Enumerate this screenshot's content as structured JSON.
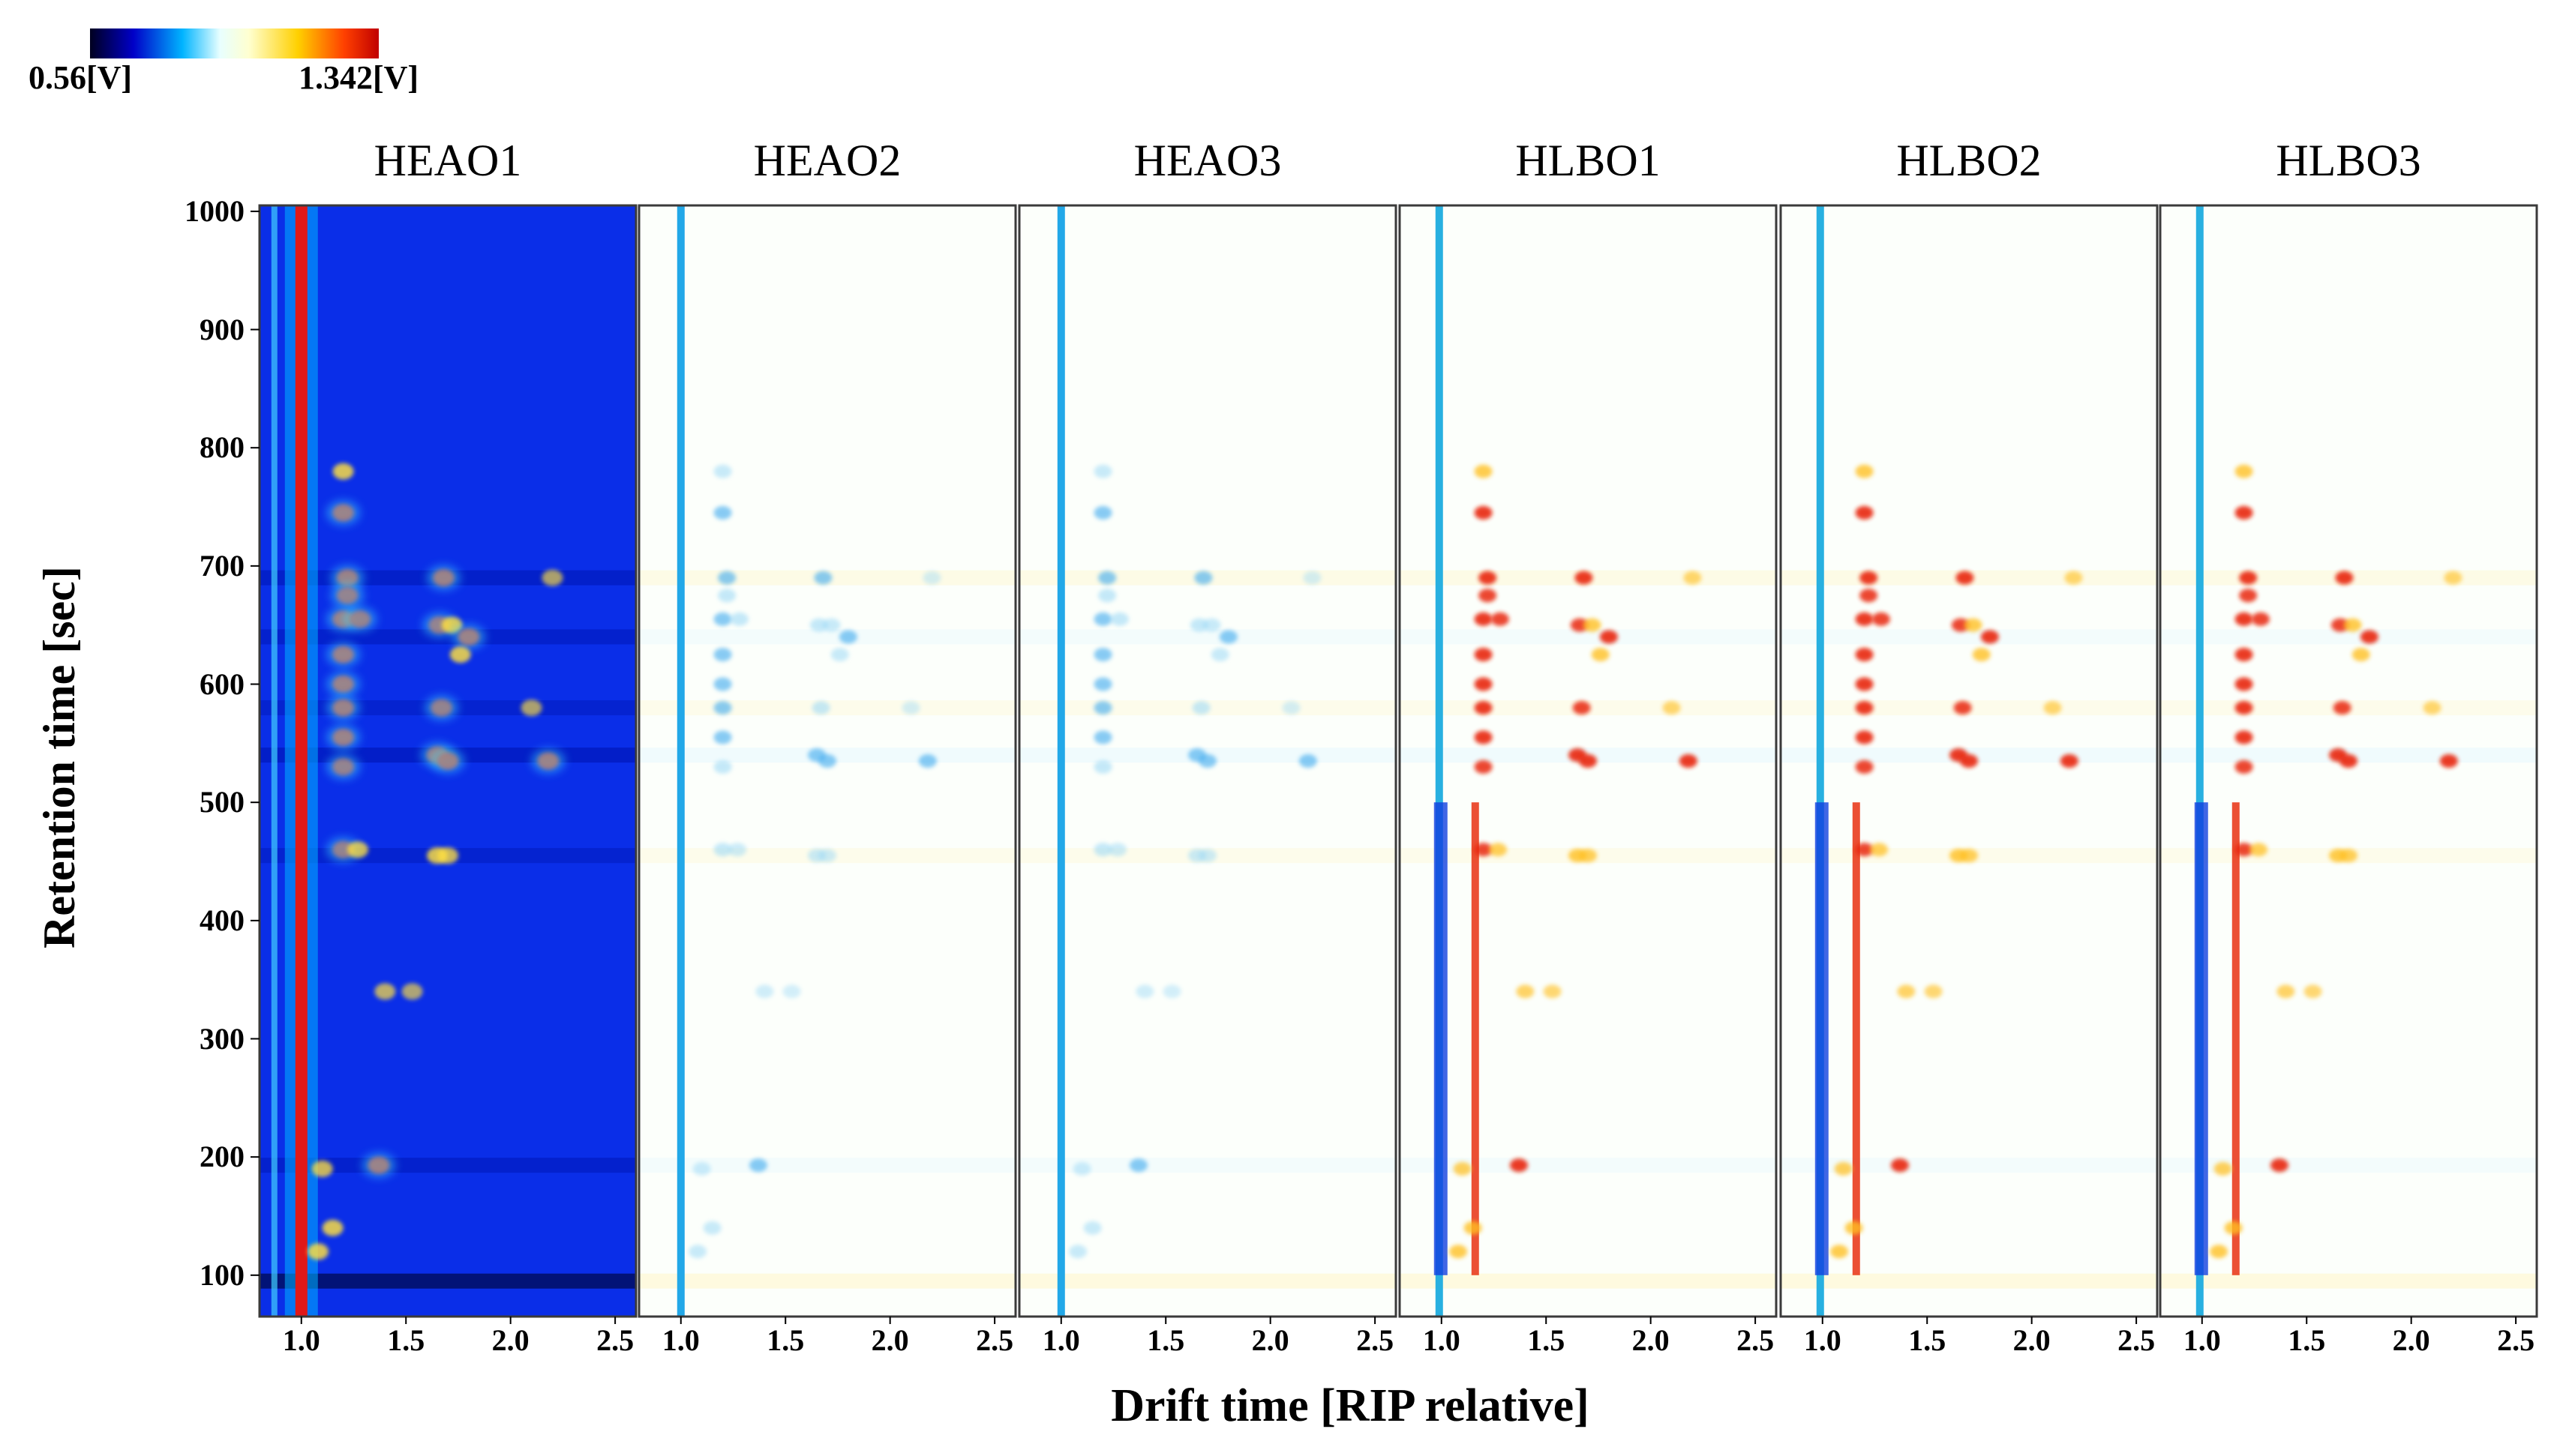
{
  "colorbar": {
    "min_label": "0.56[V]",
    "max_label": "1.342[V]",
    "min": 0.56,
    "max": 1.342,
    "colors": [
      "#000020",
      "#0000c8",
      "#00b4ff",
      "#e8ffff",
      "#ffffd0",
      "#ffd000",
      "#ff4000",
      "#c00000"
    ]
  },
  "chart_data": {
    "type": "heatmap",
    "xlabel": "Drift time [RIP relative]",
    "ylabel": "Retention time [sec]",
    "xticks": [
      "1.0",
      "1.5",
      "2.0",
      "2.5"
    ],
    "xtick_values": [
      1.0,
      1.5,
      2.0,
      2.5
    ],
    "yticks": [
      "100",
      "200",
      "300",
      "400",
      "500",
      "600",
      "700",
      "800",
      "900",
      "1000"
    ],
    "ytick_values": [
      100,
      200,
      300,
      400,
      500,
      600,
      700,
      800,
      900,
      1000
    ],
    "xlim": [
      0.8,
      2.6
    ],
    "ylim": [
      65,
      1005
    ],
    "panels": [
      {
        "name": "HEAO1",
        "mode": "absolute"
      },
      {
        "name": "HEAO2",
        "mode": "difference"
      },
      {
        "name": "HEAO3",
        "mode": "difference"
      },
      {
        "name": "HLBO1",
        "mode": "difference"
      },
      {
        "name": "HLBO2",
        "mode": "difference"
      },
      {
        "name": "HLBO3",
        "mode": "difference"
      }
    ],
    "rip_drift_time": 1.0,
    "peaks": [
      {
        "x": 1.2,
        "y": 780,
        "intensity": 0.8
      },
      {
        "x": 1.2,
        "y": 745,
        "intensity": 1.0
      },
      {
        "x": 1.22,
        "y": 690,
        "intensity": 1.0
      },
      {
        "x": 1.22,
        "y": 675,
        "intensity": 0.9
      },
      {
        "x": 1.2,
        "y": 655,
        "intensity": 1.0
      },
      {
        "x": 1.28,
        "y": 655,
        "intensity": 0.9
      },
      {
        "x": 1.2,
        "y": 625,
        "intensity": 1.0
      },
      {
        "x": 1.2,
        "y": 600,
        "intensity": 1.0
      },
      {
        "x": 1.2,
        "y": 580,
        "intensity": 1.0
      },
      {
        "x": 1.2,
        "y": 555,
        "intensity": 1.0
      },
      {
        "x": 1.2,
        "y": 530,
        "intensity": 0.9
      },
      {
        "x": 1.2,
        "y": 460,
        "intensity": 0.9
      },
      {
        "x": 1.27,
        "y": 460,
        "intensity": 0.7
      },
      {
        "x": 1.68,
        "y": 690,
        "intensity": 1.0
      },
      {
        "x": 1.66,
        "y": 650,
        "intensity": 0.9
      },
      {
        "x": 1.72,
        "y": 650,
        "intensity": 0.8
      },
      {
        "x": 1.8,
        "y": 640,
        "intensity": 1.0
      },
      {
        "x": 1.76,
        "y": 625,
        "intensity": 0.8
      },
      {
        "x": 1.67,
        "y": 580,
        "intensity": 0.9
      },
      {
        "x": 1.65,
        "y": 540,
        "intensity": 1.0
      },
      {
        "x": 1.7,
        "y": 535,
        "intensity": 1.0
      },
      {
        "x": 1.65,
        "y": 455,
        "intensity": 0.8
      },
      {
        "x": 1.7,
        "y": 455,
        "intensity": 0.7
      },
      {
        "x": 2.18,
        "y": 535,
        "intensity": 1.0
      },
      {
        "x": 2.1,
        "y": 580,
        "intensity": 0.5
      },
      {
        "x": 2.2,
        "y": 690,
        "intensity": 0.5
      },
      {
        "x": 1.4,
        "y": 340,
        "intensity": 0.6
      },
      {
        "x": 1.53,
        "y": 340,
        "intensity": 0.5
      },
      {
        "x": 1.37,
        "y": 193,
        "intensity": 1.0
      },
      {
        "x": 1.15,
        "y": 140,
        "intensity": 0.8
      },
      {
        "x": 1.08,
        "y": 120,
        "intensity": 0.8
      },
      {
        "x": 1.1,
        "y": 190,
        "intensity": 0.7
      }
    ],
    "bands": [
      {
        "y": 690,
        "intensity": 0.7
      },
      {
        "y": 640,
        "intensity": 0.6
      },
      {
        "y": 580,
        "intensity": 0.5
      },
      {
        "y": 540,
        "intensity": 0.8
      },
      {
        "y": 455,
        "intensity": 0.5
      },
      {
        "y": 193,
        "intensity": 0.6
      },
      {
        "y": 95,
        "intensity": 0.9
      }
    ]
  }
}
